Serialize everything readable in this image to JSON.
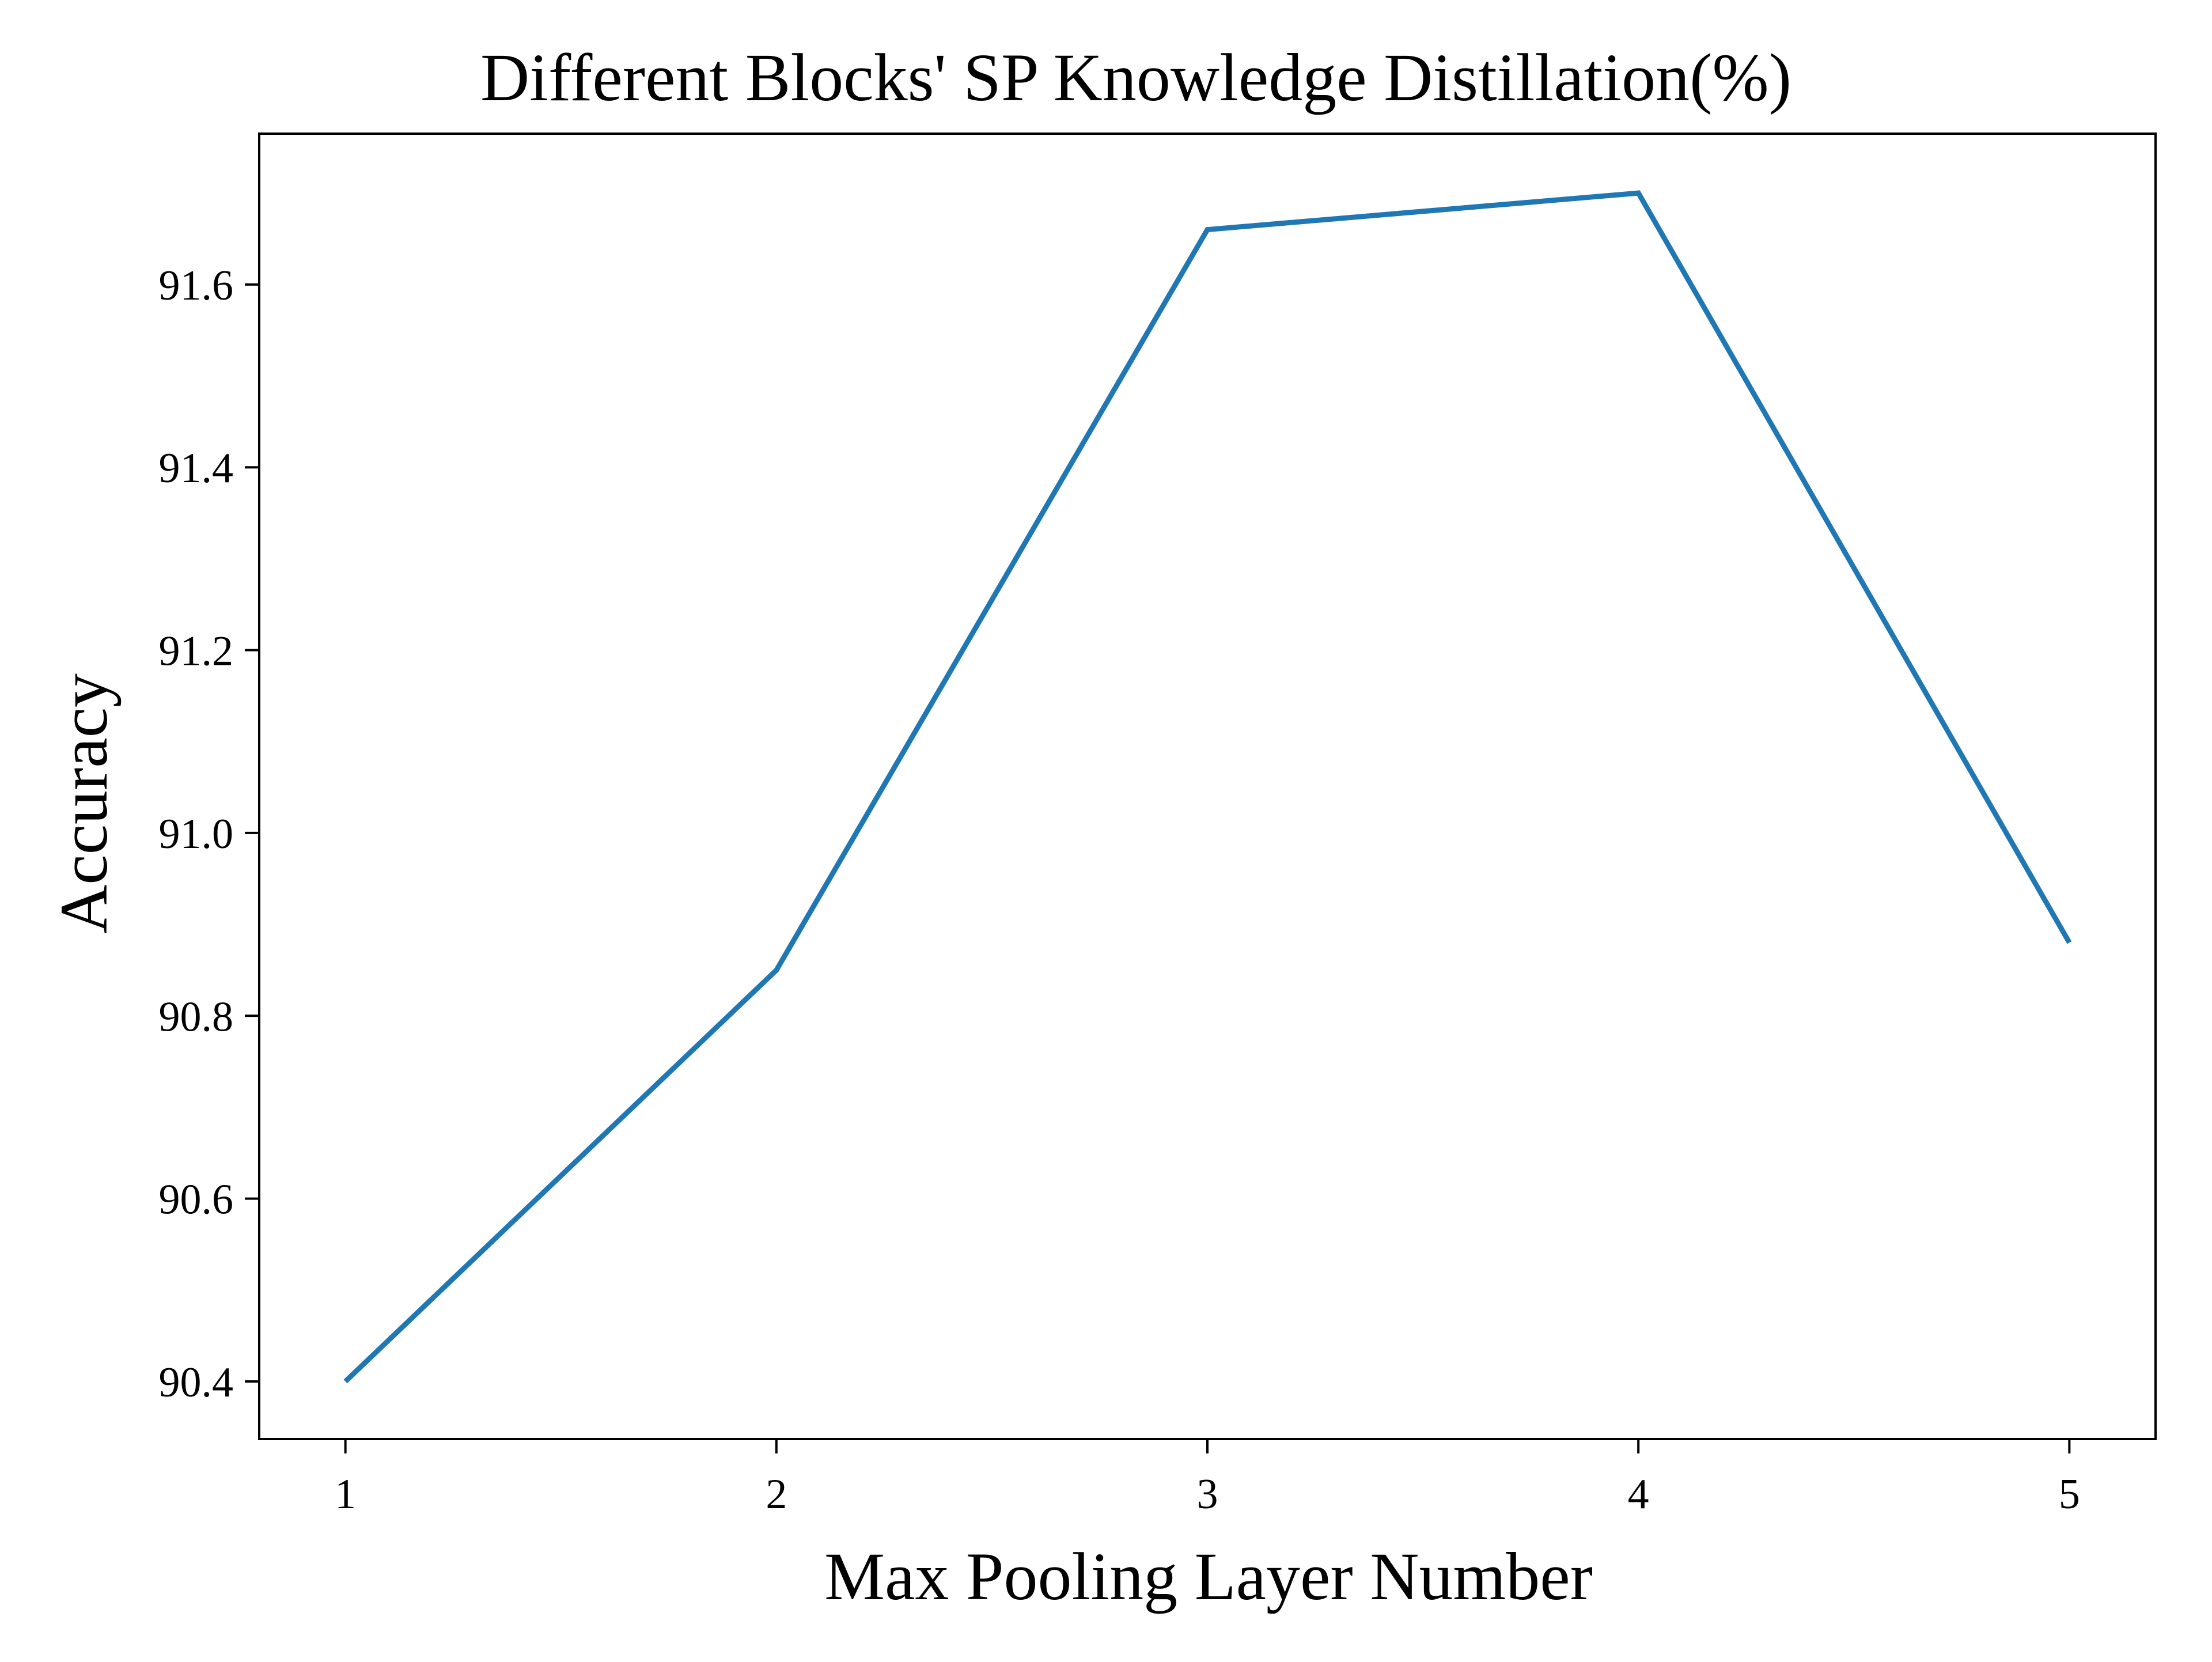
{
  "chart_data": {
    "type": "line",
    "title": "Different Blocks' SP Knowledge Distillation(%)",
    "xlabel": "Max Pooling Layer Number",
    "ylabel": "Accuracy",
    "x": [
      1,
      2,
      3,
      4,
      5
    ],
    "xticks": [
      "1",
      "2",
      "3",
      "4",
      "5"
    ],
    "yticks": [
      "90.4",
      "90.6",
      "90.8",
      "91.0",
      "91.2",
      "91.4",
      "91.6"
    ],
    "xlim": [
      0.8,
      5.2
    ],
    "ylim": [
      90.337,
      91.765
    ],
    "series": [
      {
        "values": [
          90.4,
          90.85,
          91.66,
          91.7,
          90.88
        ],
        "color": "#1f77b4"
      }
    ],
    "grid": false,
    "legend": "none"
  }
}
